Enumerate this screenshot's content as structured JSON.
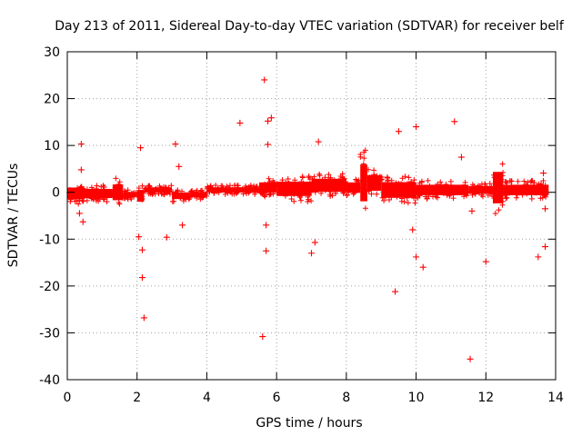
{
  "chart_data": {
    "type": "scatter",
    "title": "Day 213 of 2011, Sidereal Day-to-day VTEC variation (SDTVAR) for receiver belf",
    "xlabel": "GPS time / hours",
    "ylabel": "SDTVAR / TECUs",
    "xlim": [
      0,
      14
    ],
    "ylim": [
      -40,
      30
    ],
    "xticks": [
      0,
      2,
      4,
      6,
      8,
      10,
      12,
      14
    ],
    "yticks": [
      30,
      20,
      10,
      0,
      -10,
      -20,
      -30,
      -40
    ],
    "xtick_labels": [
      "0",
      "2",
      "4",
      "6",
      "8",
      10,
      "12",
      "14"
    ],
    "ytick_labels": [
      "30",
      "20",
      "10",
      "0",
      "-10",
      "-20",
      "-30",
      "-40"
    ],
    "grid": true,
    "marker": "+",
    "color": "#ff0000",
    "series": [
      {
        "name": "SDTVAR",
        "band_segments": [
          {
            "x": [
              0.0,
              0.5
            ],
            "y_range": [
              -2.5,
              2.0
            ]
          },
          {
            "x": [
              0.5,
              1.3
            ],
            "y_range": [
              -2.0,
              1.5
            ]
          },
          {
            "x": [
              1.3,
              1.6
            ],
            "y_range": [
              -3.0,
              3.0
            ]
          },
          {
            "x": [
              1.6,
              2.0
            ],
            "y_range": [
              -1.5,
              0.5
            ]
          },
          {
            "x": [
              2.0,
              2.2
            ],
            "y_range": [
              -3.0,
              1.5
            ]
          },
          {
            "x": [
              2.2,
              3.0
            ],
            "y_range": [
              -0.5,
              1.5
            ]
          },
          {
            "x": [
              3.0,
              3.5
            ],
            "y_range": [
              -2.0,
              0.5
            ]
          },
          {
            "x": [
              3.5,
              4.0
            ],
            "y_range": [
              -1.5,
              0.5
            ]
          },
          {
            "x": [
              4.0,
              5.5
            ],
            "y_range": [
              -0.5,
              1.5
            ]
          },
          {
            "x": [
              5.5,
              6.0
            ],
            "y_range": [
              -1.0,
              3.0
            ]
          },
          {
            "x": [
              6.0,
              7.0
            ],
            "y_range": [
              -2.0,
              3.5
            ]
          },
          {
            "x": [
              7.0,
              8.0
            ],
            "y_range": [
              -1.0,
              4.0
            ]
          },
          {
            "x": [
              8.0,
              8.4
            ],
            "y_range": [
              -1.0,
              3.0
            ]
          },
          {
            "x": [
              8.4,
              8.6
            ],
            "y_range": [
              -5.0,
              9.0
            ]
          },
          {
            "x": [
              8.6,
              9.0
            ],
            "y_range": [
              -1.0,
              5.0
            ]
          },
          {
            "x": [
              9.0,
              10.0
            ],
            "y_range": [
              -2.5,
              3.5
            ]
          },
          {
            "x": [
              10.0,
              11.5
            ],
            "y_range": [
              -1.5,
              2.5
            ]
          },
          {
            "x": [
              11.5,
              12.2
            ],
            "y_range": [
              -1.0,
              2.0
            ]
          },
          {
            "x": [
              12.2,
              12.5
            ],
            "y_range": [
              -5.0,
              7.0
            ]
          },
          {
            "x": [
              12.5,
              13.8
            ],
            "y_range": [
              -1.5,
              2.5
            ]
          }
        ],
        "outliers": [
          {
            "x": 0.4,
            "y": 10.3
          },
          {
            "x": 0.4,
            "y": 4.8
          },
          {
            "x": 0.35,
            "y": -4.5
          },
          {
            "x": 0.45,
            "y": -6.3
          },
          {
            "x": 2.1,
            "y": 9.5
          },
          {
            "x": 2.05,
            "y": -9.5
          },
          {
            "x": 2.15,
            "y": -12.3
          },
          {
            "x": 2.15,
            "y": -18.2
          },
          {
            "x": 2.2,
            "y": -26.8
          },
          {
            "x": 2.85,
            "y": -9.6
          },
          {
            "x": 3.1,
            "y": 10.3
          },
          {
            "x": 3.2,
            "y": 5.5
          },
          {
            "x": 3.3,
            "y": -7.0
          },
          {
            "x": 4.95,
            "y": 14.8
          },
          {
            "x": 5.65,
            "y": 24.0
          },
          {
            "x": 5.6,
            "y": -30.8
          },
          {
            "x": 5.75,
            "y": 15.2
          },
          {
            "x": 5.85,
            "y": 15.9
          },
          {
            "x": 5.75,
            "y": 10.2
          },
          {
            "x": 5.7,
            "y": -7.0
          },
          {
            "x": 5.7,
            "y": -12.5
          },
          {
            "x": 7.0,
            "y": -13.0
          },
          {
            "x": 7.1,
            "y": -10.7
          },
          {
            "x": 7.2,
            "y": 10.8
          },
          {
            "x": 9.4,
            "y": -21.2
          },
          {
            "x": 9.5,
            "y": 13.0
          },
          {
            "x": 9.9,
            "y": -8.0
          },
          {
            "x": 10.0,
            "y": -13.8
          },
          {
            "x": 10.0,
            "y": 14.0
          },
          {
            "x": 10.2,
            "y": -16.0
          },
          {
            "x": 11.1,
            "y": 15.1
          },
          {
            "x": 11.3,
            "y": 7.5
          },
          {
            "x": 11.55,
            "y": -35.6
          },
          {
            "x": 11.6,
            "y": -4.0
          },
          {
            "x": 12.0,
            "y": -14.8
          },
          {
            "x": 13.5,
            "y": -13.8
          },
          {
            "x": 13.7,
            "y": -11.6
          },
          {
            "x": 13.65,
            "y": 4.1
          },
          {
            "x": 13.7,
            "y": -3.5
          }
        ]
      }
    ]
  }
}
